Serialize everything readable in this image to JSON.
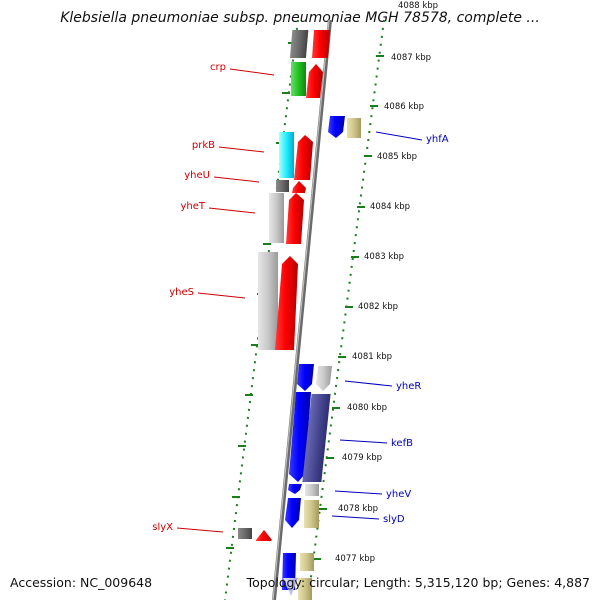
{
  "title": "Klebsiella pneumoniae subsp. pneumoniae MGH 78578, complete ...",
  "accession_text": "Accession: NC_009648",
  "topology_text": "Topology: circular; Length: 5,315,120 bp; Genes: 4,887",
  "colors": {
    "forward_label": "#cc0000",
    "reverse_label": "#0000bb",
    "tick": "#1a7f1a",
    "backbone": "#777777"
  },
  "scale": {
    "unit": "kbp",
    "ticks": [
      "4088 kbp",
      "4087 kbp",
      "4086 kbp",
      "4085 kbp",
      "4084 kbp",
      "4083 kbp",
      "4082 kbp",
      "4081 kbp",
      "4080 kbp",
      "4079 kbp",
      "4078 kbp",
      "4077 kbp"
    ]
  },
  "labels": {
    "forward": [
      "crp",
      "prkB",
      "yheU",
      "yheT",
      "yheS",
      "slyX"
    ],
    "reverse": [
      "yhfA",
      "yheR",
      "kefB",
      "yheV",
      "slyD"
    ]
  }
}
